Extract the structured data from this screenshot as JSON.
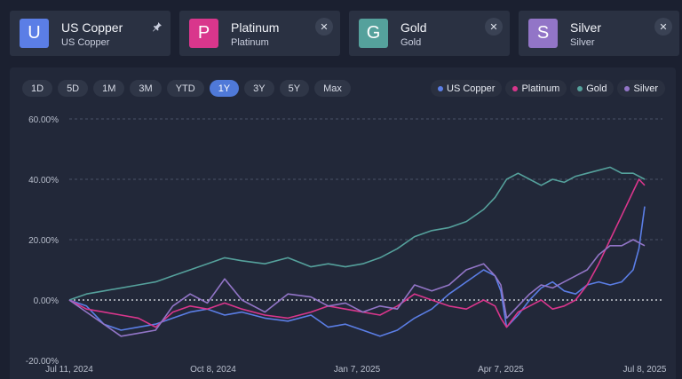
{
  "cards": [
    {
      "letter": "U",
      "name": "US Copper",
      "sub": "US Copper",
      "color": "#5b7ee6",
      "action": "pin-icon"
    },
    {
      "letter": "P",
      "name": "Platinum",
      "sub": "Platinum",
      "color": "#d9368c",
      "action": "close-icon"
    },
    {
      "letter": "G",
      "name": "Gold",
      "sub": "Gold",
      "color": "#55a19c",
      "action": "close-icon"
    },
    {
      "letter": "S",
      "name": "Silver",
      "sub": "Silver",
      "color": "#9275c7",
      "action": "close-icon"
    }
  ],
  "ranges": [
    "1D",
    "5D",
    "1M",
    "3M",
    "YTD",
    "1Y",
    "3Y",
    "5Y",
    "Max"
  ],
  "active_range": "1Y",
  "close_glyph": "✕",
  "chart_data": {
    "type": "line",
    "y_tick_labels": [
      "60.00%",
      "40.00%",
      "20.00%",
      "0.00%",
      "-20.00%"
    ],
    "ylim": [
      -20,
      60
    ],
    "x_tick_labels": [
      "Jul 11, 2024",
      "Oct 8, 2024",
      "Jan 7, 2025",
      "Apr 7, 2025",
      "Jul 8, 2025"
    ],
    "x_tick_positions": [
      0,
      0.25,
      0.5,
      0.75,
      1.0
    ],
    "grid": "horizontal dashed",
    "zero_line": "dotted",
    "legend_position": "top-right",
    "series": [
      {
        "name": "US Copper",
        "color": "#5b7ee6",
        "points": [
          [
            0,
            0
          ],
          [
            0.03,
            -2
          ],
          [
            0.06,
            -8
          ],
          [
            0.09,
            -10
          ],
          [
            0.12,
            -9
          ],
          [
            0.15,
            -8
          ],
          [
            0.18,
            -6
          ],
          [
            0.21,
            -4
          ],
          [
            0.24,
            -3
          ],
          [
            0.27,
            -5
          ],
          [
            0.3,
            -4
          ],
          [
            0.34,
            -6
          ],
          [
            0.38,
            -7
          ],
          [
            0.42,
            -5
          ],
          [
            0.45,
            -9
          ],
          [
            0.48,
            -8
          ],
          [
            0.51,
            -10
          ],
          [
            0.54,
            -12
          ],
          [
            0.57,
            -10
          ],
          [
            0.6,
            -6
          ],
          [
            0.63,
            -3
          ],
          [
            0.66,
            2
          ],
          [
            0.69,
            6
          ],
          [
            0.72,
            10
          ],
          [
            0.74,
            8
          ],
          [
            0.75,
            3
          ],
          [
            0.76,
            -9
          ],
          [
            0.78,
            -5
          ],
          [
            0.8,
            0
          ],
          [
            0.82,
            4
          ],
          [
            0.84,
            6
          ],
          [
            0.86,
            3
          ],
          [
            0.88,
            2
          ],
          [
            0.9,
            5
          ],
          [
            0.92,
            6
          ],
          [
            0.94,
            5
          ],
          [
            0.96,
            6
          ],
          [
            0.98,
            10
          ],
          [
            0.99,
            17
          ],
          [
            1.0,
            31
          ]
        ]
      },
      {
        "name": "Platinum",
        "color": "#d9368c",
        "points": [
          [
            0,
            0
          ],
          [
            0.03,
            -3
          ],
          [
            0.06,
            -4
          ],
          [
            0.09,
            -5
          ],
          [
            0.12,
            -6
          ],
          [
            0.15,
            -9
          ],
          [
            0.18,
            -4
          ],
          [
            0.21,
            -2
          ],
          [
            0.24,
            -3
          ],
          [
            0.27,
            -1
          ],
          [
            0.3,
            -3
          ],
          [
            0.34,
            -5
          ],
          [
            0.38,
            -6
          ],
          [
            0.42,
            -4
          ],
          [
            0.45,
            -2
          ],
          [
            0.48,
            -3
          ],
          [
            0.51,
            -4
          ],
          [
            0.54,
            -5
          ],
          [
            0.57,
            -2
          ],
          [
            0.6,
            2
          ],
          [
            0.63,
            0
          ],
          [
            0.66,
            -2
          ],
          [
            0.69,
            -3
          ],
          [
            0.72,
            0
          ],
          [
            0.74,
            -2
          ],
          [
            0.75,
            -6
          ],
          [
            0.76,
            -9
          ],
          [
            0.78,
            -4
          ],
          [
            0.8,
            -2
          ],
          [
            0.82,
            0
          ],
          [
            0.84,
            -3
          ],
          [
            0.86,
            -2
          ],
          [
            0.88,
            0
          ],
          [
            0.9,
            5
          ],
          [
            0.92,
            12
          ],
          [
            0.94,
            20
          ],
          [
            0.96,
            28
          ],
          [
            0.98,
            36
          ],
          [
            0.99,
            40
          ],
          [
            1.0,
            38
          ]
        ]
      },
      {
        "name": "Gold",
        "color": "#55a19c",
        "points": [
          [
            0,
            0
          ],
          [
            0.03,
            2
          ],
          [
            0.06,
            3
          ],
          [
            0.09,
            4
          ],
          [
            0.12,
            5
          ],
          [
            0.15,
            6
          ],
          [
            0.18,
            8
          ],
          [
            0.21,
            10
          ],
          [
            0.24,
            12
          ],
          [
            0.27,
            14
          ],
          [
            0.3,
            13
          ],
          [
            0.34,
            12
          ],
          [
            0.38,
            14
          ],
          [
            0.42,
            11
          ],
          [
            0.45,
            12
          ],
          [
            0.48,
            11
          ],
          [
            0.51,
            12
          ],
          [
            0.54,
            14
          ],
          [
            0.57,
            17
          ],
          [
            0.6,
            21
          ],
          [
            0.63,
            23
          ],
          [
            0.66,
            24
          ],
          [
            0.69,
            26
          ],
          [
            0.72,
            30
          ],
          [
            0.74,
            34
          ],
          [
            0.76,
            40
          ],
          [
            0.78,
            42
          ],
          [
            0.8,
            40
          ],
          [
            0.82,
            38
          ],
          [
            0.84,
            40
          ],
          [
            0.86,
            39
          ],
          [
            0.88,
            41
          ],
          [
            0.9,
            42
          ],
          [
            0.92,
            43
          ],
          [
            0.94,
            44
          ],
          [
            0.96,
            42
          ],
          [
            0.98,
            42
          ],
          [
            1.0,
            40
          ]
        ]
      },
      {
        "name": "Silver",
        "color": "#9275c7",
        "points": [
          [
            0,
            0
          ],
          [
            0.03,
            -4
          ],
          [
            0.06,
            -8
          ],
          [
            0.09,
            -12
          ],
          [
            0.12,
            -11
          ],
          [
            0.15,
            -10
          ],
          [
            0.18,
            -2
          ],
          [
            0.21,
            2
          ],
          [
            0.24,
            -1
          ],
          [
            0.27,
            7
          ],
          [
            0.3,
            0
          ],
          [
            0.34,
            -4
          ],
          [
            0.38,
            2
          ],
          [
            0.42,
            1
          ],
          [
            0.45,
            -2
          ],
          [
            0.48,
            -1
          ],
          [
            0.51,
            -4
          ],
          [
            0.54,
            -2
          ],
          [
            0.57,
            -3
          ],
          [
            0.6,
            5
          ],
          [
            0.63,
            3
          ],
          [
            0.66,
            5
          ],
          [
            0.69,
            10
          ],
          [
            0.72,
            12
          ],
          [
            0.74,
            8
          ],
          [
            0.75,
            5
          ],
          [
            0.76,
            -6
          ],
          [
            0.78,
            -2
          ],
          [
            0.8,
            2
          ],
          [
            0.82,
            5
          ],
          [
            0.84,
            4
          ],
          [
            0.86,
            6
          ],
          [
            0.88,
            8
          ],
          [
            0.9,
            10
          ],
          [
            0.92,
            15
          ],
          [
            0.94,
            18
          ],
          [
            0.96,
            18
          ],
          [
            0.98,
            20
          ],
          [
            1.0,
            18
          ]
        ]
      }
    ]
  }
}
